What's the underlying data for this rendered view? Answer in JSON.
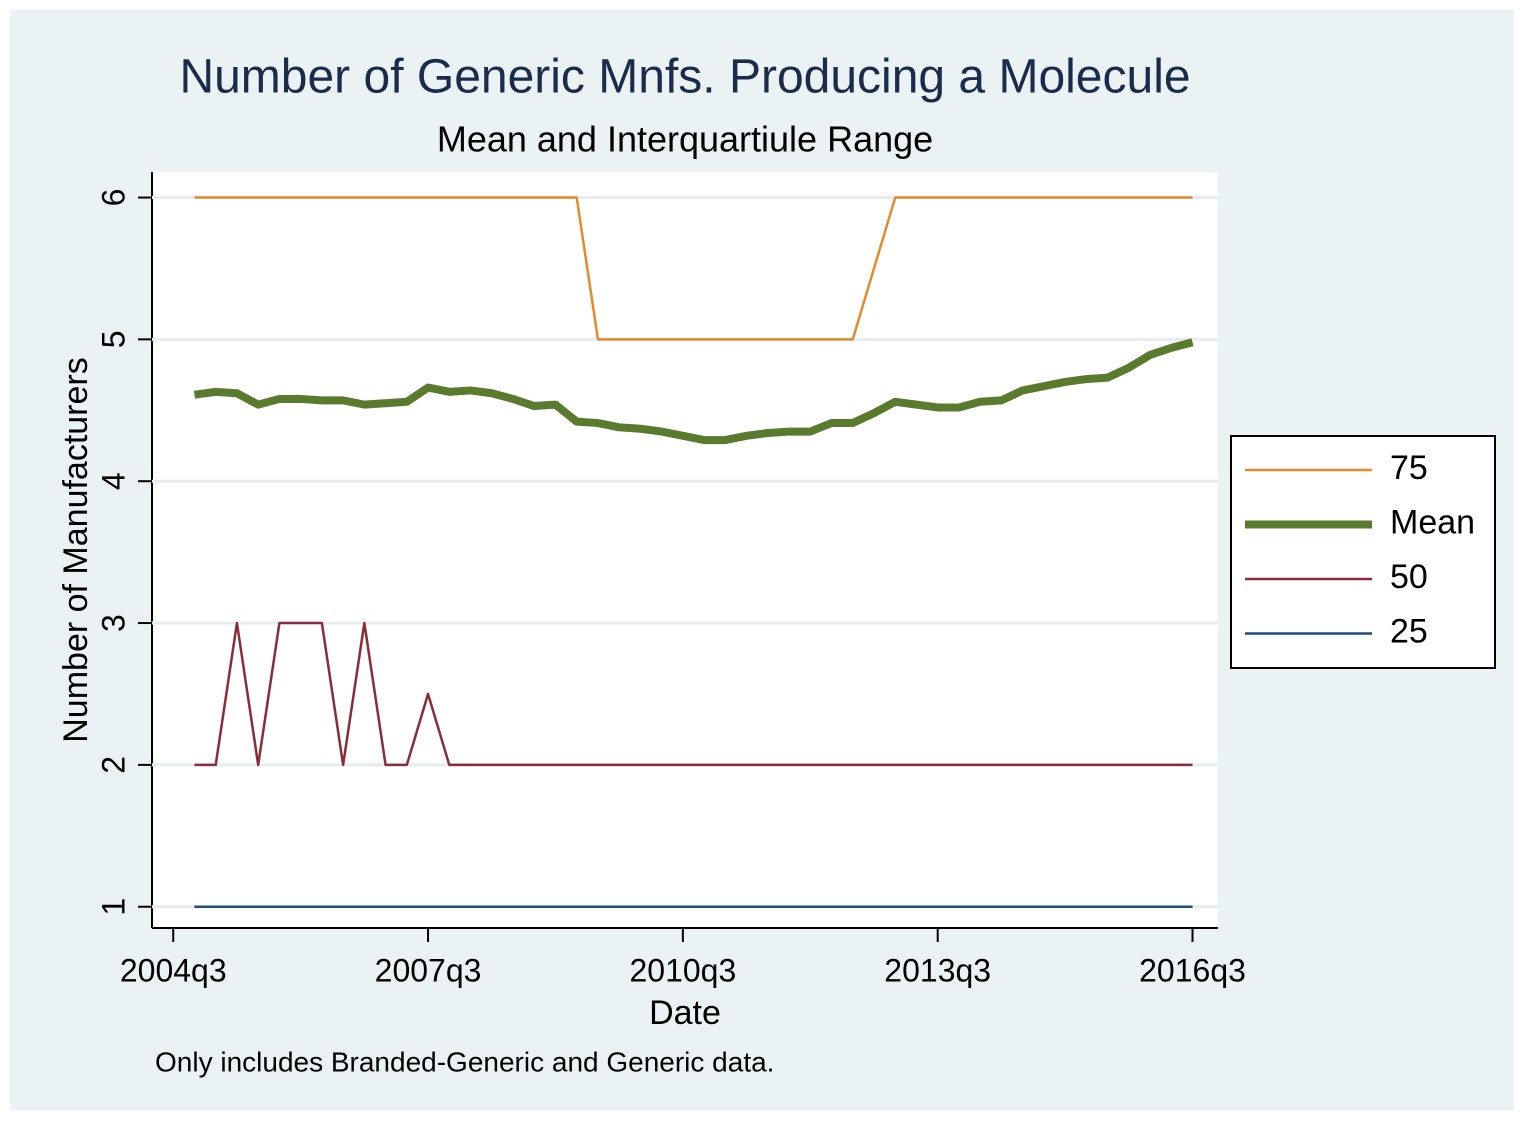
{
  "chart_data": {
    "type": "line",
    "title": "Number of Generic Mnfs. Producing a Molecule",
    "subtitle": "Mean and Interquartiule Range",
    "x_label": "Date",
    "y_label": "Number of Manufacturers",
    "note": "Only includes Branded-Generic and Generic data.",
    "x": [
      179,
      180,
      181,
      182,
      183,
      184,
      185,
      186,
      187,
      188,
      189,
      190,
      191,
      192,
      193,
      194,
      195,
      196,
      197,
      198,
      199,
      200,
      201,
      202,
      203,
      204,
      205,
      206,
      207,
      208,
      209,
      210,
      211,
      212,
      213,
      214,
      215,
      216,
      217,
      218,
      219,
      220,
      221,
      222,
      223,
      224,
      225,
      226
    ],
    "series": [
      {
        "name": "75",
        "color": "#e6892f",
        "width": 2.5,
        "values": [
          6,
          6,
          6,
          6,
          6,
          6,
          6,
          6,
          6,
          6,
          6,
          6,
          6,
          6,
          6,
          6,
          6,
          6,
          6,
          5,
          5,
          5,
          5,
          5,
          5,
          5,
          5,
          5,
          5,
          5,
          5,
          5,
          5.5,
          6,
          6,
          6,
          6,
          6,
          6,
          6,
          6,
          6,
          6,
          6,
          6,
          6,
          6,
          6
        ]
      },
      {
        "name": "Mean",
        "color": "#5a7a2e",
        "width": 8,
        "values": [
          4.61,
          4.63,
          4.62,
          4.54,
          4.58,
          4.58,
          4.57,
          4.57,
          4.54,
          4.55,
          4.56,
          4.66,
          4.63,
          4.64,
          4.62,
          4.58,
          4.53,
          4.54,
          4.42,
          4.41,
          4.38,
          4.37,
          4.35,
          4.32,
          4.29,
          4.29,
          4.32,
          4.34,
          4.35,
          4.35,
          4.41,
          4.41,
          4.48,
          4.56,
          4.54,
          4.52,
          4.52,
          4.56,
          4.57,
          4.64,
          4.67,
          4.7,
          4.72,
          4.73,
          4.8,
          4.89,
          4.94,
          4.98
        ]
      },
      {
        "name": "50",
        "color": "#8b2c3a",
        "width": 2.5,
        "values": [
          2,
          2,
          3,
          2,
          3,
          3,
          3,
          2,
          3,
          2,
          2,
          2.5,
          2,
          2,
          2,
          2,
          2,
          2,
          2,
          2,
          2,
          2,
          2,
          2,
          2,
          2,
          2,
          2,
          2,
          2,
          2,
          2,
          2,
          2,
          2,
          2,
          2,
          2,
          2,
          2,
          2,
          2,
          2,
          2,
          2,
          2,
          2,
          2
        ]
      },
      {
        "name": "25",
        "color": "#1f4e79",
        "width": 2.5,
        "values": [
          1,
          1,
          1,
          1,
          1,
          1,
          1,
          1,
          1,
          1,
          1,
          1,
          1,
          1,
          1,
          1,
          1,
          1,
          1,
          1,
          1,
          1,
          1,
          1,
          1,
          1,
          1,
          1,
          1,
          1,
          1,
          1,
          1,
          1,
          1,
          1,
          1,
          1,
          1,
          1,
          1,
          1,
          1,
          1,
          1,
          1,
          1,
          1
        ]
      }
    ],
    "xlim": [
      177,
      227.2
    ],
    "xticks": [
      {
        "value": 178,
        "label": "2004q3"
      },
      {
        "value": 190,
        "label": "2007q3"
      },
      {
        "value": 202,
        "label": "2010q3"
      },
      {
        "value": 214,
        "label": "2013q3"
      },
      {
        "value": 226,
        "label": "2016q3"
      }
    ],
    "ylim": [
      0.85,
      6.18
    ],
    "yticks": [
      1,
      2,
      3,
      4,
      5,
      6
    ],
    "grid": true,
    "legend": "right"
  }
}
